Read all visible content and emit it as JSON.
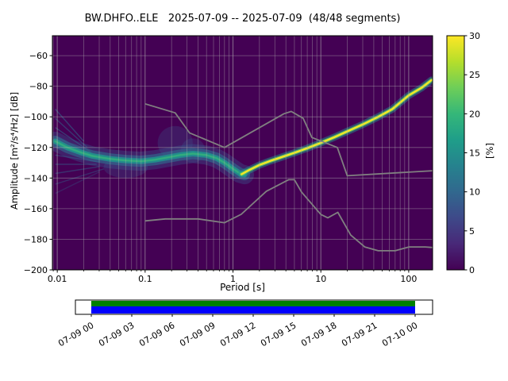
{
  "chart_data": {
    "type": "heatmap",
    "subtype": "ppsd-probabilistic-power-spectral-density",
    "title": "BW.DHFO..ELE   2025-07-09 -- 2025-07-09  (48/48 segments)",
    "xlabel": "Period [s]",
    "ylabel": "Amplitude [m²/s⁴/Hz] [dB]",
    "x_axis": {
      "scale": "log",
      "min": 0.0088,
      "max": 187,
      "ticks": [
        0.01,
        0.1,
        1,
        10,
        100
      ],
      "tick_labels": [
        "0.01",
        "0.1",
        "1",
        "10",
        "100"
      ]
    },
    "y_axis": {
      "min": -200,
      "max": -47,
      "ticks": [
        -200,
        -180,
        -160,
        -140,
        -120,
        -100,
        -80,
        -60
      ],
      "tick_labels": [
        "−200",
        "−180",
        "−160",
        "−140",
        "−120",
        "−100",
        "−80",
        "−60"
      ]
    },
    "colorbar": {
      "label": "[%]",
      "min": 0,
      "max": 30,
      "ticks": [
        0,
        5,
        10,
        15,
        20,
        25,
        30
      ],
      "colormap": "viridis",
      "stops": [
        "#440154",
        "#482878",
        "#3e4989",
        "#31688e",
        "#26828e",
        "#1f9e89",
        "#35b779",
        "#6ece58",
        "#b5de2b",
        "#fde725"
      ]
    },
    "colors": {
      "background": "#440154",
      "grid": "#b0b0b0",
      "frame": "#000000",
      "noise_model": "#808080"
    },
    "noise_models": {
      "nhnm": [
        [
          0.1,
          -91.5
        ],
        [
          0.22,
          -97.4
        ],
        [
          0.32,
          -110.5
        ],
        [
          0.8,
          -120.0
        ],
        [
          3.8,
          -98.0
        ],
        [
          4.6,
          -96.5
        ],
        [
          6.3,
          -101.0
        ],
        [
          7.9,
          -113.5
        ],
        [
          15.4,
          -120.0
        ],
        [
          20,
          -138.5
        ],
        [
          187,
          -135.2
        ]
      ],
      "nlnm": [
        [
          0.1,
          -168.0
        ],
        [
          0.17,
          -166.7
        ],
        [
          0.4,
          -166.7
        ],
        [
          0.8,
          -169.2
        ],
        [
          1.24,
          -163.7
        ],
        [
          2.4,
          -148.6
        ],
        [
          4.3,
          -141.1
        ],
        [
          5.0,
          -141.1
        ],
        [
          6.0,
          -149.0
        ],
        [
          10,
          -163.8
        ],
        [
          12,
          -166.0
        ],
        [
          15.6,
          -162.4
        ],
        [
          21.9,
          -177.3
        ],
        [
          31.6,
          -185.0
        ],
        [
          45,
          -187.5
        ],
        [
          70,
          -187.5
        ],
        [
          101,
          -185.0
        ],
        [
          154,
          -185.0
        ],
        [
          187,
          -185.4
        ]
      ]
    },
    "psd_band": {
      "center": [
        [
          0.0095,
          -116
        ],
        [
          0.013,
          -120
        ],
        [
          0.018,
          -123
        ],
        [
          0.025,
          -125.5
        ],
        [
          0.04,
          -127.5
        ],
        [
          0.06,
          -128.5
        ],
        [
          0.09,
          -129
        ],
        [
          0.13,
          -128
        ],
        [
          0.18,
          -126.5
        ],
        [
          0.25,
          -125
        ],
        [
          0.35,
          -124
        ],
        [
          0.5,
          -125
        ],
        [
          0.65,
          -127
        ],
        [
          0.8,
          -130
        ],
        [
          1.0,
          -134
        ],
        [
          1.2,
          -137
        ],
        [
          1.35,
          -137.8
        ]
      ],
      "layers": [
        {
          "color": "#3b528b",
          "width": 24,
          "opacity": 0.4
        },
        {
          "color": "#31688e",
          "width": 14,
          "opacity": 0.65
        },
        {
          "color": "#21918c",
          "width": 7,
          "opacity": 0.9
        },
        {
          "color": "#35b779",
          "width": 2.5,
          "opacity": 0.75
        }
      ],
      "clouds": [
        [
          0.22,
          -117,
          0.2,
          11,
          0.3
        ],
        [
          0.35,
          -122,
          0.14,
          8,
          0.3
        ],
        [
          0.06,
          -133,
          0.25,
          7,
          0.3
        ]
      ],
      "cloud_color": "#3b528b"
    },
    "streaks": {
      "color": "#31688e",
      "segments": [
        [
          0.0095,
          -95,
          0.02,
          -116,
          0.55
        ],
        [
          0.0095,
          -101,
          0.022,
          -120,
          0.5
        ],
        [
          0.0095,
          -107,
          0.024,
          -123,
          0.55
        ],
        [
          0.0095,
          -113,
          0.027,
          -126,
          0.5
        ],
        [
          0.0095,
          -119,
          0.03,
          -128,
          0.55
        ],
        [
          0.0095,
          -125,
          0.03,
          -129.5,
          0.5
        ],
        [
          0.0095,
          -131,
          0.028,
          -131,
          0.45
        ],
        [
          0.0095,
          -137,
          0.03,
          -132.5,
          0.45
        ],
        [
          0.0095,
          -144,
          0.034,
          -134,
          0.4
        ],
        [
          0.0095,
          -150,
          0.03,
          -136,
          0.3
        ]
      ]
    },
    "bright_line": {
      "points": [
        [
          1.25,
          -137.5
        ],
        [
          1.5,
          -135
        ],
        [
          2,
          -131.5
        ],
        [
          2.6,
          -129
        ],
        [
          3.5,
          -126.5
        ],
        [
          5,
          -123.5
        ],
        [
          7,
          -120.5
        ],
        [
          10,
          -117
        ],
        [
          14,
          -113.5
        ],
        [
          20,
          -109.5
        ],
        [
          30,
          -105
        ],
        [
          45,
          -100
        ],
        [
          65,
          -95
        ],
        [
          100,
          -86
        ],
        [
          140,
          -81
        ],
        [
          182,
          -76
        ]
      ],
      "layers": [
        {
          "color": "#21918c",
          "width": 9,
          "opacity": 0.5
        },
        {
          "color": "#5ec962",
          "width": 4.5,
          "opacity": 0.9
        },
        {
          "color": "#fde725",
          "width": 2.2,
          "opacity": 1
        }
      ]
    },
    "coverage": {
      "labels": [
        "07-09 00",
        "07-09 03",
        "07-09 06",
        "07-09 09",
        "07-09 12",
        "07-09 15",
        "07-09 18",
        "07-09 21",
        "07-10 00"
      ],
      "kept_color": "#008000",
      "data_color": "#0000ff",
      "box_color": "#ffffff"
    }
  }
}
